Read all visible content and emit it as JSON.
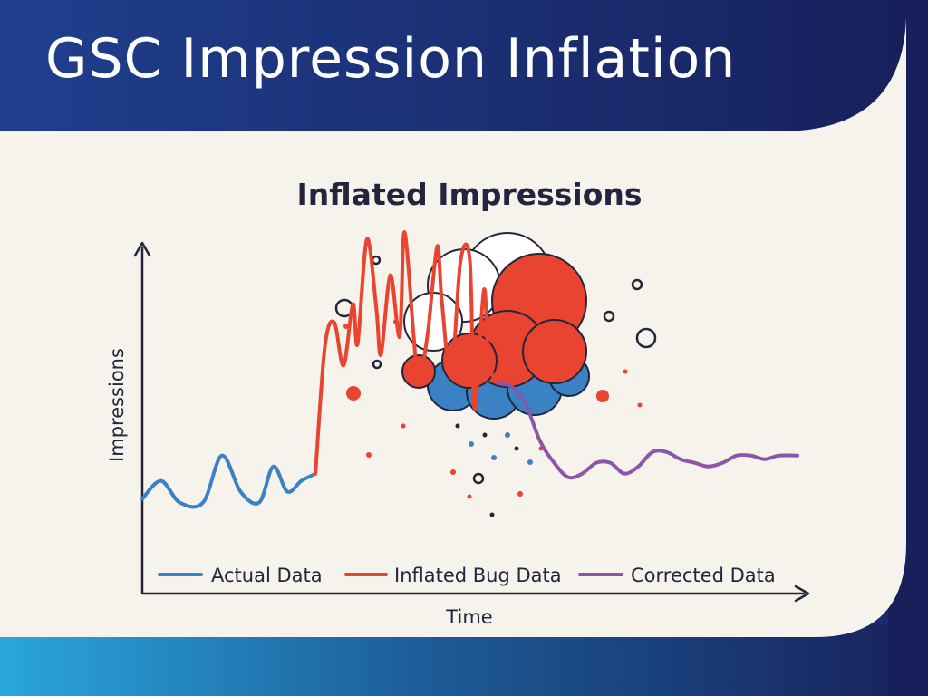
{
  "page": {
    "title": "GSC Impression Inflation"
  },
  "colors": {
    "header_start": "#1f3f8e",
    "header_end": "#17205a",
    "panel": "#f6f2ec",
    "footer_start": "#2aa6dc",
    "footer_end": "#17205a",
    "actual": "#3b82c4",
    "inflated": "#e8442f",
    "corrected": "#8b55a8",
    "text": "#23253d"
  },
  "chart_data": {
    "type": "line",
    "title": "Inflated Impressions",
    "xlabel": "Time",
    "ylabel": "Impressions",
    "axis_ticks": false,
    "grid": false,
    "legend_position": "bottom",
    "decoration": "explosion-cloud",
    "series": [
      {
        "name": "Actual Data",
        "color": "#3b82c4",
        "x": [
          0,
          4,
          8,
          13,
          17,
          21,
          25,
          28,
          31,
          34,
          37
        ],
        "y": [
          25,
          30,
          24,
          24,
          37,
          27,
          24,
          34,
          27,
          30,
          32
        ]
      },
      {
        "name": "Inflated Bug Data",
        "color": "#e8442f",
        "x": [
          37,
          39,
          41,
          43,
          45,
          46,
          48,
          50,
          51,
          53,
          55,
          56,
          58,
          59,
          61,
          63,
          64,
          66,
          68,
          70,
          71,
          73,
          74,
          76
        ],
        "y": [
          32,
          67,
          74,
          62,
          79,
          68,
          97,
          78,
          65,
          87,
          70,
          99,
          70,
          57,
          71,
          95,
          80,
          59,
          91,
          91,
          50,
          83,
          63,
          57
        ]
      },
      {
        "name": "Corrected Data",
        "color": "#8b55a8",
        "x": [
          76,
          79,
          82,
          85,
          88,
          91,
          94,
          97,
          100,
          103,
          106,
          109,
          112,
          115,
          118,
          121,
          124,
          127,
          130,
          133,
          136,
          140
        ],
        "y": [
          57,
          56,
          51,
          41,
          35,
          31,
          32,
          35,
          35,
          32,
          34,
          38,
          38,
          36,
          35,
          34,
          35,
          37,
          37,
          36,
          37,
          37
        ]
      }
    ]
  }
}
